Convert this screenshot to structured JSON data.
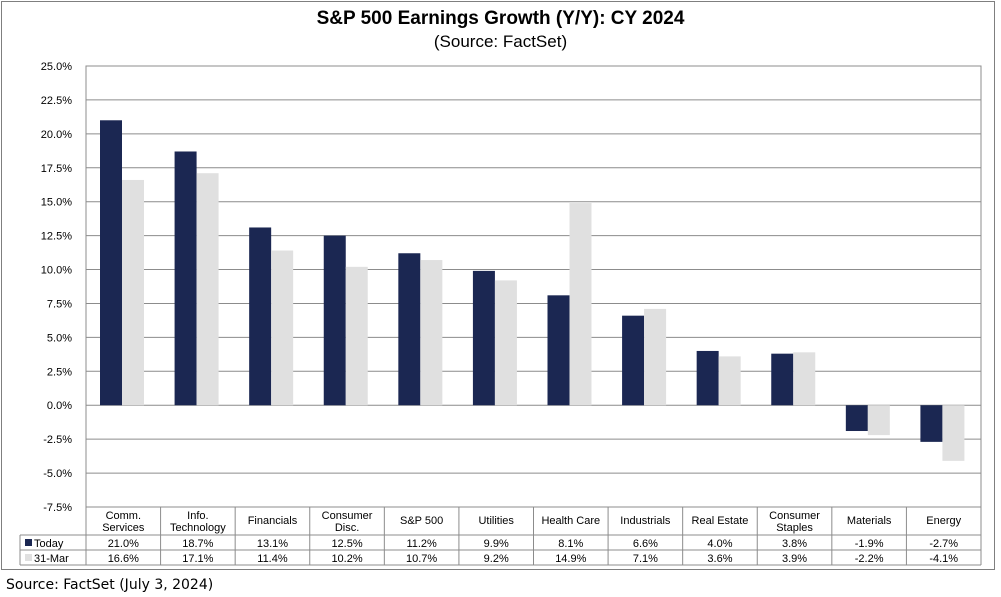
{
  "chart_data": {
    "type": "bar",
    "title": "S&P 500 Earnings Growth (Y/Y): CY 2024",
    "subtitle": "(Source: FactSet)",
    "categories": [
      "Comm.\nServices",
      "Info.\nTechnology",
      "Financials",
      "Consumer\nDisc.",
      "S&P 500",
      "Utilities",
      "Health Care",
      "Industrials",
      "Real Estate",
      "Consumer\nStaples",
      "Materials",
      "Energy"
    ],
    "series": [
      {
        "name": "Today",
        "color": "#1b2752",
        "values": [
          21.0,
          18.7,
          13.1,
          12.5,
          11.2,
          9.9,
          8.1,
          6.6,
          4.0,
          3.8,
          -1.9,
          -2.7
        ]
      },
      {
        "name": "31-Mar",
        "color": "#e0e0e0",
        "values": [
          16.6,
          17.1,
          11.4,
          10.2,
          10.7,
          9.2,
          14.9,
          7.1,
          3.6,
          3.9,
          -2.2,
          -4.1
        ]
      }
    ],
    "table_values": {
      "Today": [
        "21.0%",
        "18.7%",
        "13.1%",
        "12.5%",
        "11.2%",
        "9.9%",
        "8.1%",
        "6.6%",
        "4.0%",
        "3.8%",
        "-1.9%",
        "-2.7%"
      ],
      "31-Mar": [
        "16.6%",
        "17.1%",
        "11.4%",
        "10.2%",
        "10.7%",
        "9.2%",
        "14.9%",
        "7.1%",
        "3.6%",
        "3.9%",
        "-2.2%",
        "-4.1%"
      ]
    },
    "ylim": [
      -7.5,
      25.0
    ],
    "ytick_step": 2.5,
    "ytick_labels": [
      "25.0%",
      "22.5%",
      "20.0%",
      "17.5%",
      "15.0%",
      "12.5%",
      "10.0%",
      "7.5%",
      "5.0%",
      "2.5%",
      "0.0%",
      "-2.5%",
      "-5.0%",
      "-7.5%"
    ],
    "grid": true,
    "legend": "data-table",
    "xlabel": "",
    "ylabel": ""
  },
  "footer": "Source: FactSet (July 3, 2024)"
}
